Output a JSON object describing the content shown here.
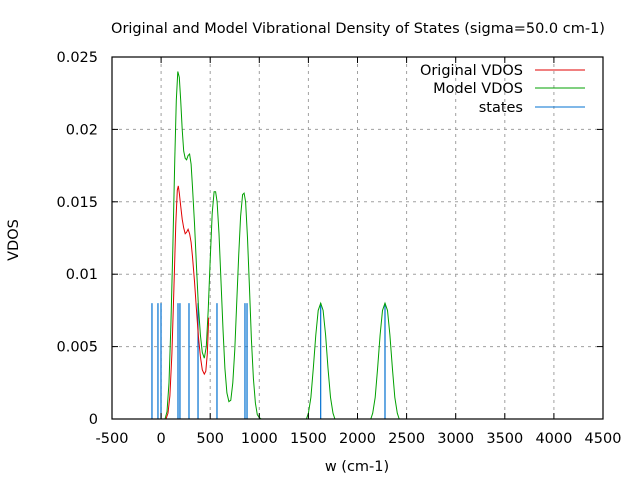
{
  "chart_data": {
    "type": "line",
    "title": "Original and Model Vibrational Density of States (sigma=50.0 cm-1)",
    "xlabel": "w (cm-1)",
    "ylabel": "VDOS",
    "xlim": [
      -500,
      4500
    ],
    "ylim": [
      0,
      0.025
    ],
    "grid": true,
    "legend_position": "top-right",
    "xticks": [
      -500,
      0,
      500,
      1000,
      1500,
      2000,
      2500,
      3000,
      3500,
      4000,
      4500
    ],
    "xtick_labels": [
      "-500",
      "0",
      "500",
      "1000",
      "1500",
      "2000",
      "2500",
      "3000",
      "3500",
      "4000",
      "4500"
    ],
    "yticks": [
      0,
      0.005,
      0.01,
      0.015,
      0.02,
      0.025
    ],
    "ytick_labels": [
      "0",
      "0.005",
      "0.01",
      "0.015",
      "0.02",
      "0.025"
    ],
    "series": [
      {
        "name": "Original VDOS",
        "color": "#e00000",
        "x": [
          50,
          70,
          90,
          110,
          130,
          150,
          165,
          175,
          185,
          200,
          215,
          230,
          245,
          260,
          275,
          290,
          305,
          320,
          340,
          360,
          380,
          400,
          420,
          440,
          455,
          470,
          485
        ],
        "y": [
          0.0,
          0.0004,
          0.0016,
          0.0045,
          0.009,
          0.0135,
          0.0158,
          0.0161,
          0.0156,
          0.0147,
          0.0138,
          0.0132,
          0.0128,
          0.0129,
          0.0131,
          0.0128,
          0.0122,
          0.0112,
          0.0095,
          0.0075,
          0.0057,
          0.0043,
          0.0034,
          0.0031,
          0.0033,
          0.0045,
          0.007
        ]
      },
      {
        "name": "Model VDOS",
        "color": "#00a000",
        "x": [
          40,
          60,
          80,
          100,
          120,
          140,
          155,
          170,
          185,
          200,
          215,
          230,
          245,
          260,
          275,
          290,
          305,
          320,
          340,
          360,
          380,
          400,
          420,
          440,
          460,
          480,
          500,
          520,
          540,
          555,
          570,
          590,
          610,
          630,
          650,
          670,
          690,
          710,
          730,
          750,
          770,
          790,
          810,
          830,
          845,
          860,
          880,
          900,
          920,
          940,
          960,
          980,
          1000,
          1020,
          1480,
          1500,
          1525,
          1550,
          1575,
          1600,
          1625,
          1650,
          1675,
          1700,
          1725,
          1750,
          1770,
          2135,
          2155,
          2180,
          2205,
          2230,
          2255,
          2280,
          2305,
          2330,
          2355,
          2380,
          2405,
          2425
        ],
        "y": [
          0.0,
          0.0005,
          0.0025,
          0.0065,
          0.012,
          0.018,
          0.022,
          0.024,
          0.0236,
          0.022,
          0.02,
          0.0185,
          0.018,
          0.0179,
          0.0182,
          0.0183,
          0.0176,
          0.016,
          0.0135,
          0.0105,
          0.0078,
          0.0058,
          0.0046,
          0.0042,
          0.005,
          0.0075,
          0.011,
          0.0142,
          0.0157,
          0.0157,
          0.015,
          0.0128,
          0.0095,
          0.0062,
          0.0035,
          0.0018,
          0.0012,
          0.0013,
          0.0025,
          0.0048,
          0.008,
          0.0113,
          0.014,
          0.0155,
          0.0156,
          0.015,
          0.0125,
          0.009,
          0.0055,
          0.0028,
          0.0011,
          0.0003,
          0.0001,
          0.0,
          0.0,
          0.0004,
          0.0015,
          0.0035,
          0.0058,
          0.0075,
          0.008,
          0.0075,
          0.0058,
          0.0035,
          0.0015,
          0.0004,
          0.0,
          0.0,
          0.0004,
          0.0015,
          0.0035,
          0.0058,
          0.0075,
          0.008,
          0.0075,
          0.0058,
          0.0035,
          0.0015,
          0.0004,
          0.0
        ]
      },
      {
        "name": "states",
        "color": "#0070d0",
        "type": "impulses",
        "x": [
          -93,
          -32,
          -1,
          172,
          192,
          284,
          376,
          569,
          854,
          875,
          1625,
          2280
        ],
        "y": [
          0.008,
          0.008,
          0.008,
          0.008,
          0.008,
          0.008,
          0.008,
          0.008,
          0.008,
          0.008,
          0.008,
          0.008
        ]
      }
    ]
  }
}
